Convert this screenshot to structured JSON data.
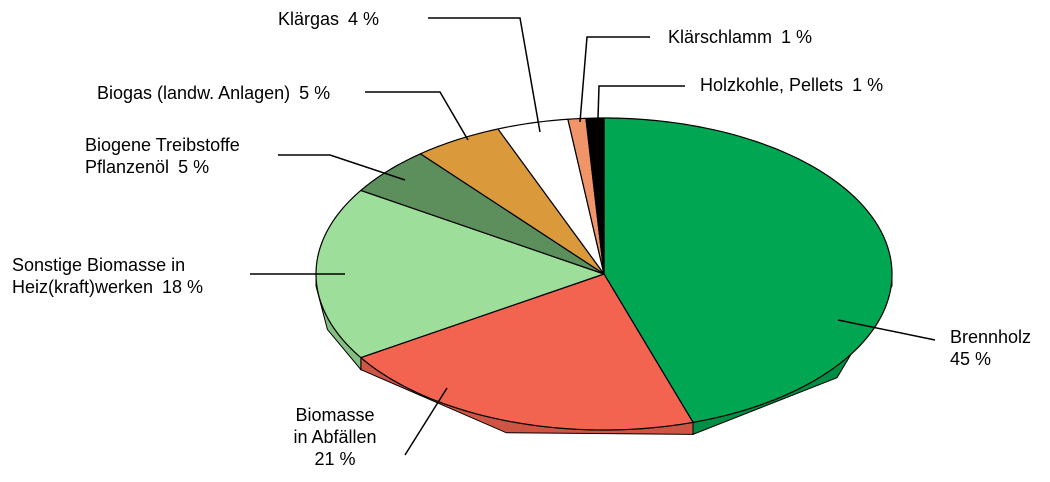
{
  "chart_data": {
    "type": "pie",
    "categories": [
      "Brennholz",
      "Biomasse\nin Abfällen",
      "Sonstige Biomasse in\nHeiz(kraft)werken",
      "Biogene Treibstoffe\nPflanzenöl",
      "Biogas (landw. Anlagen)",
      "Klärgas",
      "Klärschlamm",
      "Holzkohle, Pellets"
    ],
    "values": [
      45,
      21,
      18,
      5,
      5,
      4,
      1,
      1
    ],
    "value_labels": [
      "45 %",
      "21 %",
      "18 %",
      "5 %",
      "5 %",
      "4 %",
      "1 %",
      "1 %"
    ],
    "colors": [
      "#00a651",
      "#f26450",
      "#9ddf9a",
      "#5c8f5c",
      "#da9a3c",
      "#ffffff",
      "#f0956a",
      "#000000"
    ]
  }
}
